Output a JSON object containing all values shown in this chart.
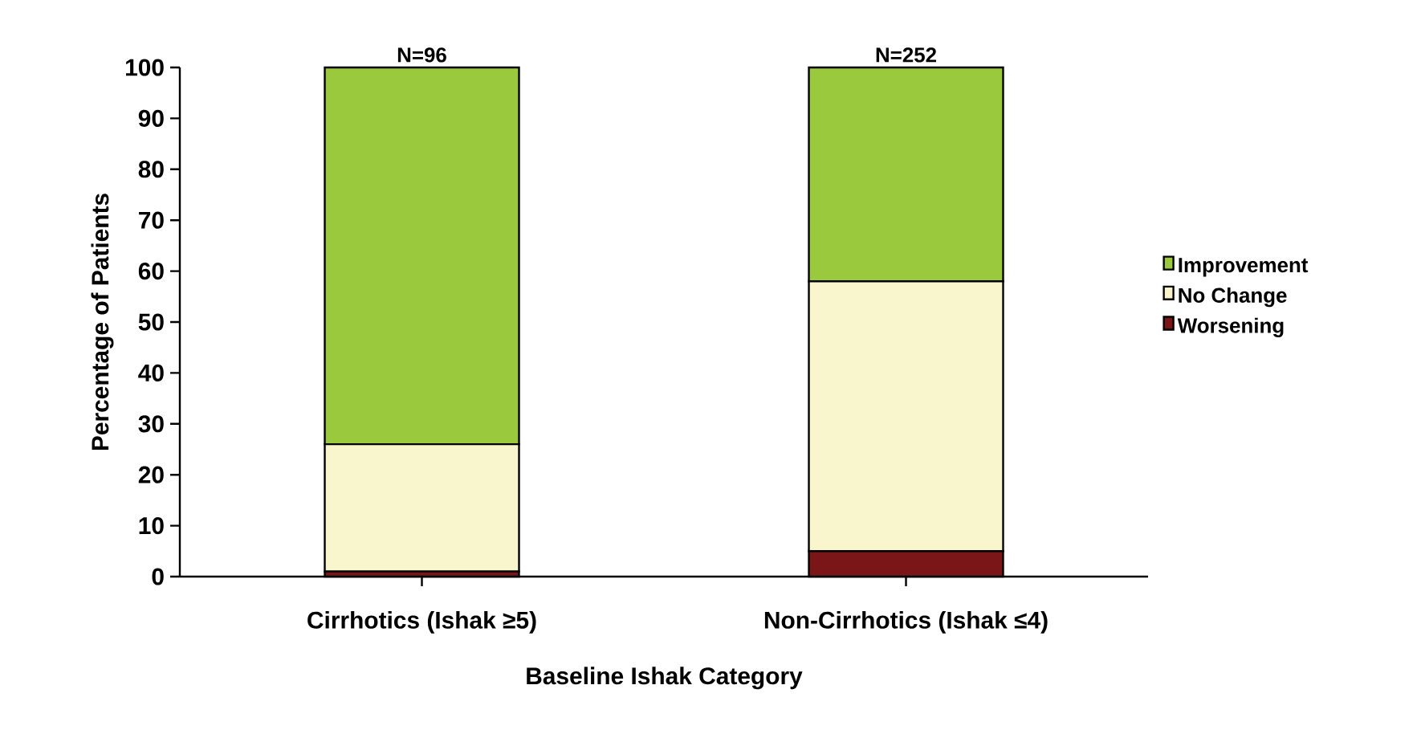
{
  "chart_data": {
    "type": "bar",
    "stacked": true,
    "categories": [
      "Cirrhotics (Ishak ≥5)",
      "Non-Cirrhotics (Ishak ≤4)"
    ],
    "xlabel": "Baseline Ishak Category",
    "ylabel": "Percentage of Patients",
    "ylim": [
      0,
      100
    ],
    "yticks": [
      0,
      10,
      20,
      30,
      40,
      50,
      60,
      70,
      80,
      90,
      100
    ],
    "series": [
      {
        "name": "Worsening",
        "color": "#7b1618",
        "values": [
          1,
          5
        ]
      },
      {
        "name": "No Change",
        "color": "#f9f5cc",
        "values": [
          25,
          53
        ]
      },
      {
        "name": "Improvement",
        "color": "#9bc93d",
        "values": [
          74,
          42
        ]
      }
    ],
    "annotations": [
      {
        "text": "N=96",
        "x": "Cirrhotics (Ishak ≥5)",
        "y": 100
      },
      {
        "text": "N=252",
        "x": "Non-Cirrhotics (Ishak ≤4)",
        "y": 100
      }
    ],
    "legend": "right",
    "grid": false
  }
}
